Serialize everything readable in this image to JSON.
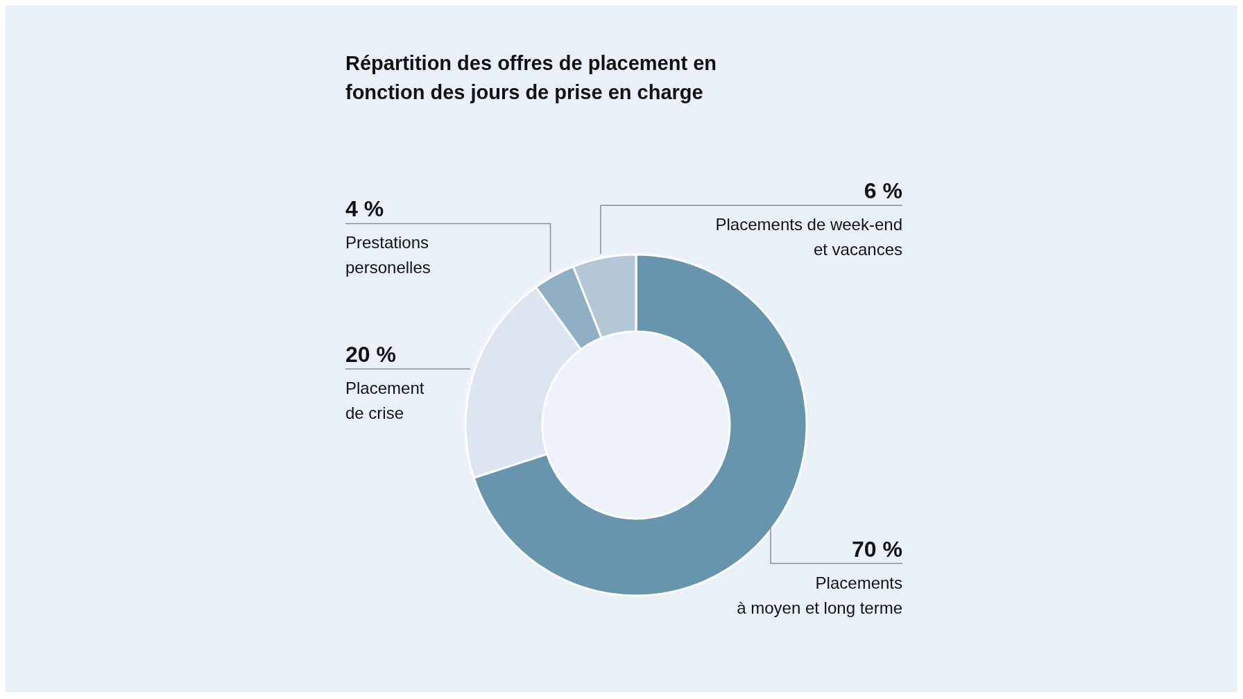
{
  "chart_data": {
    "type": "donut",
    "title": "Répartition des offres de placement en fonction des jours de prise en charge",
    "categories": [
      "Placements\nà moyen et long terme",
      "Placement\nde crise",
      "Prestations\npersonelles",
      "Placements de week-end\net vacances"
    ],
    "values": [
      70,
      20,
      4,
      6
    ],
    "value_labels": [
      "70 %",
      "20 %",
      "4 %",
      "6 %"
    ],
    "colors": [
      "#6795ad",
      "#dce5f0",
      "#90aec4",
      "#b4c7d7"
    ]
  }
}
